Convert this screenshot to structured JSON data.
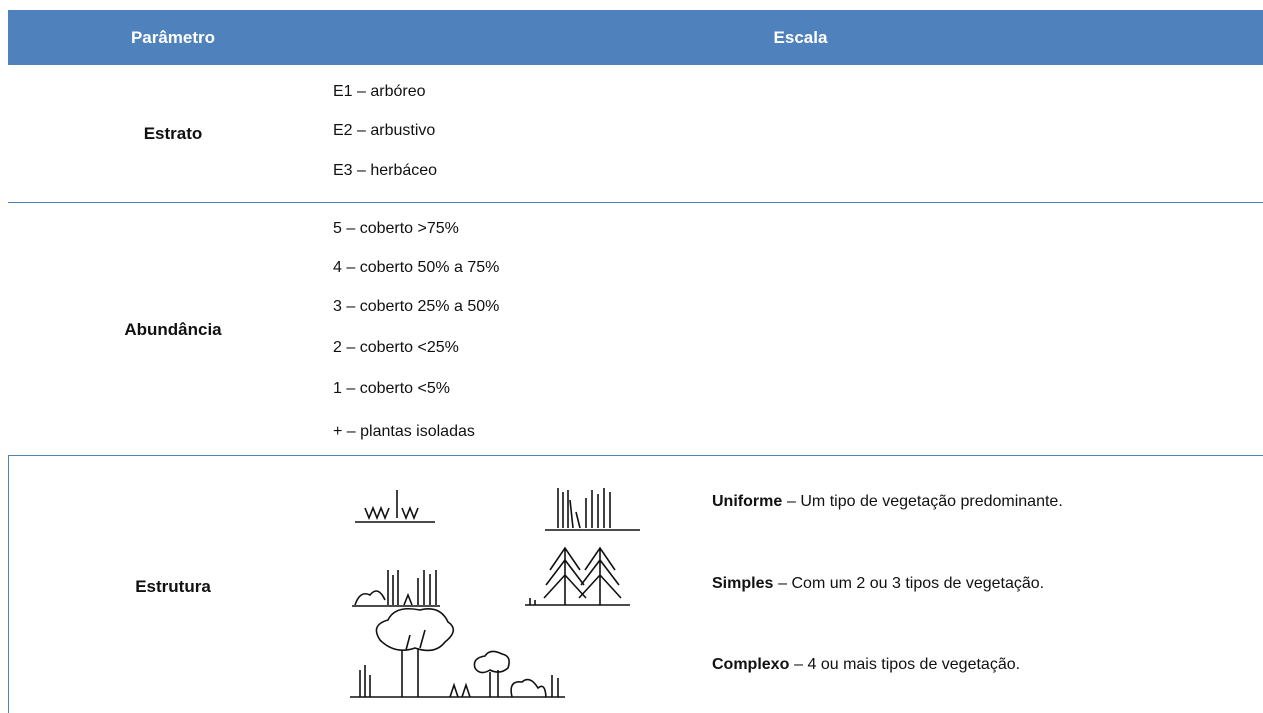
{
  "table": {
    "header": [
      "Parâmetro",
      "Escala"
    ],
    "rows": [
      {
        "parameter": "Estrato",
        "items": [
          "E1 – arbóreo",
          "E2 – arbustivo",
          "E3 – herbáceo"
        ]
      },
      {
        "parameter": "Abundância",
        "items": [
          "5 – coberto >75%",
          "4 – coberto 50% a 75%",
          "3 – coberto 25% a 50%",
          "2 – coberto <25%",
          "1 – coberto <5%",
          "+ – plantas isoladas"
        ]
      },
      {
        "parameter": "Estrutura",
        "items": [
          {
            "term": "Uniforme",
            "text": "– Um tipo de vegetação predominante."
          },
          {
            "term": "Simples",
            "text": "– Com um 2 ou 3 tipos de vegetação."
          },
          {
            "term": "Complexo",
            "text": "– 4 ou mais tipos de vegetação."
          }
        ]
      }
    ]
  }
}
